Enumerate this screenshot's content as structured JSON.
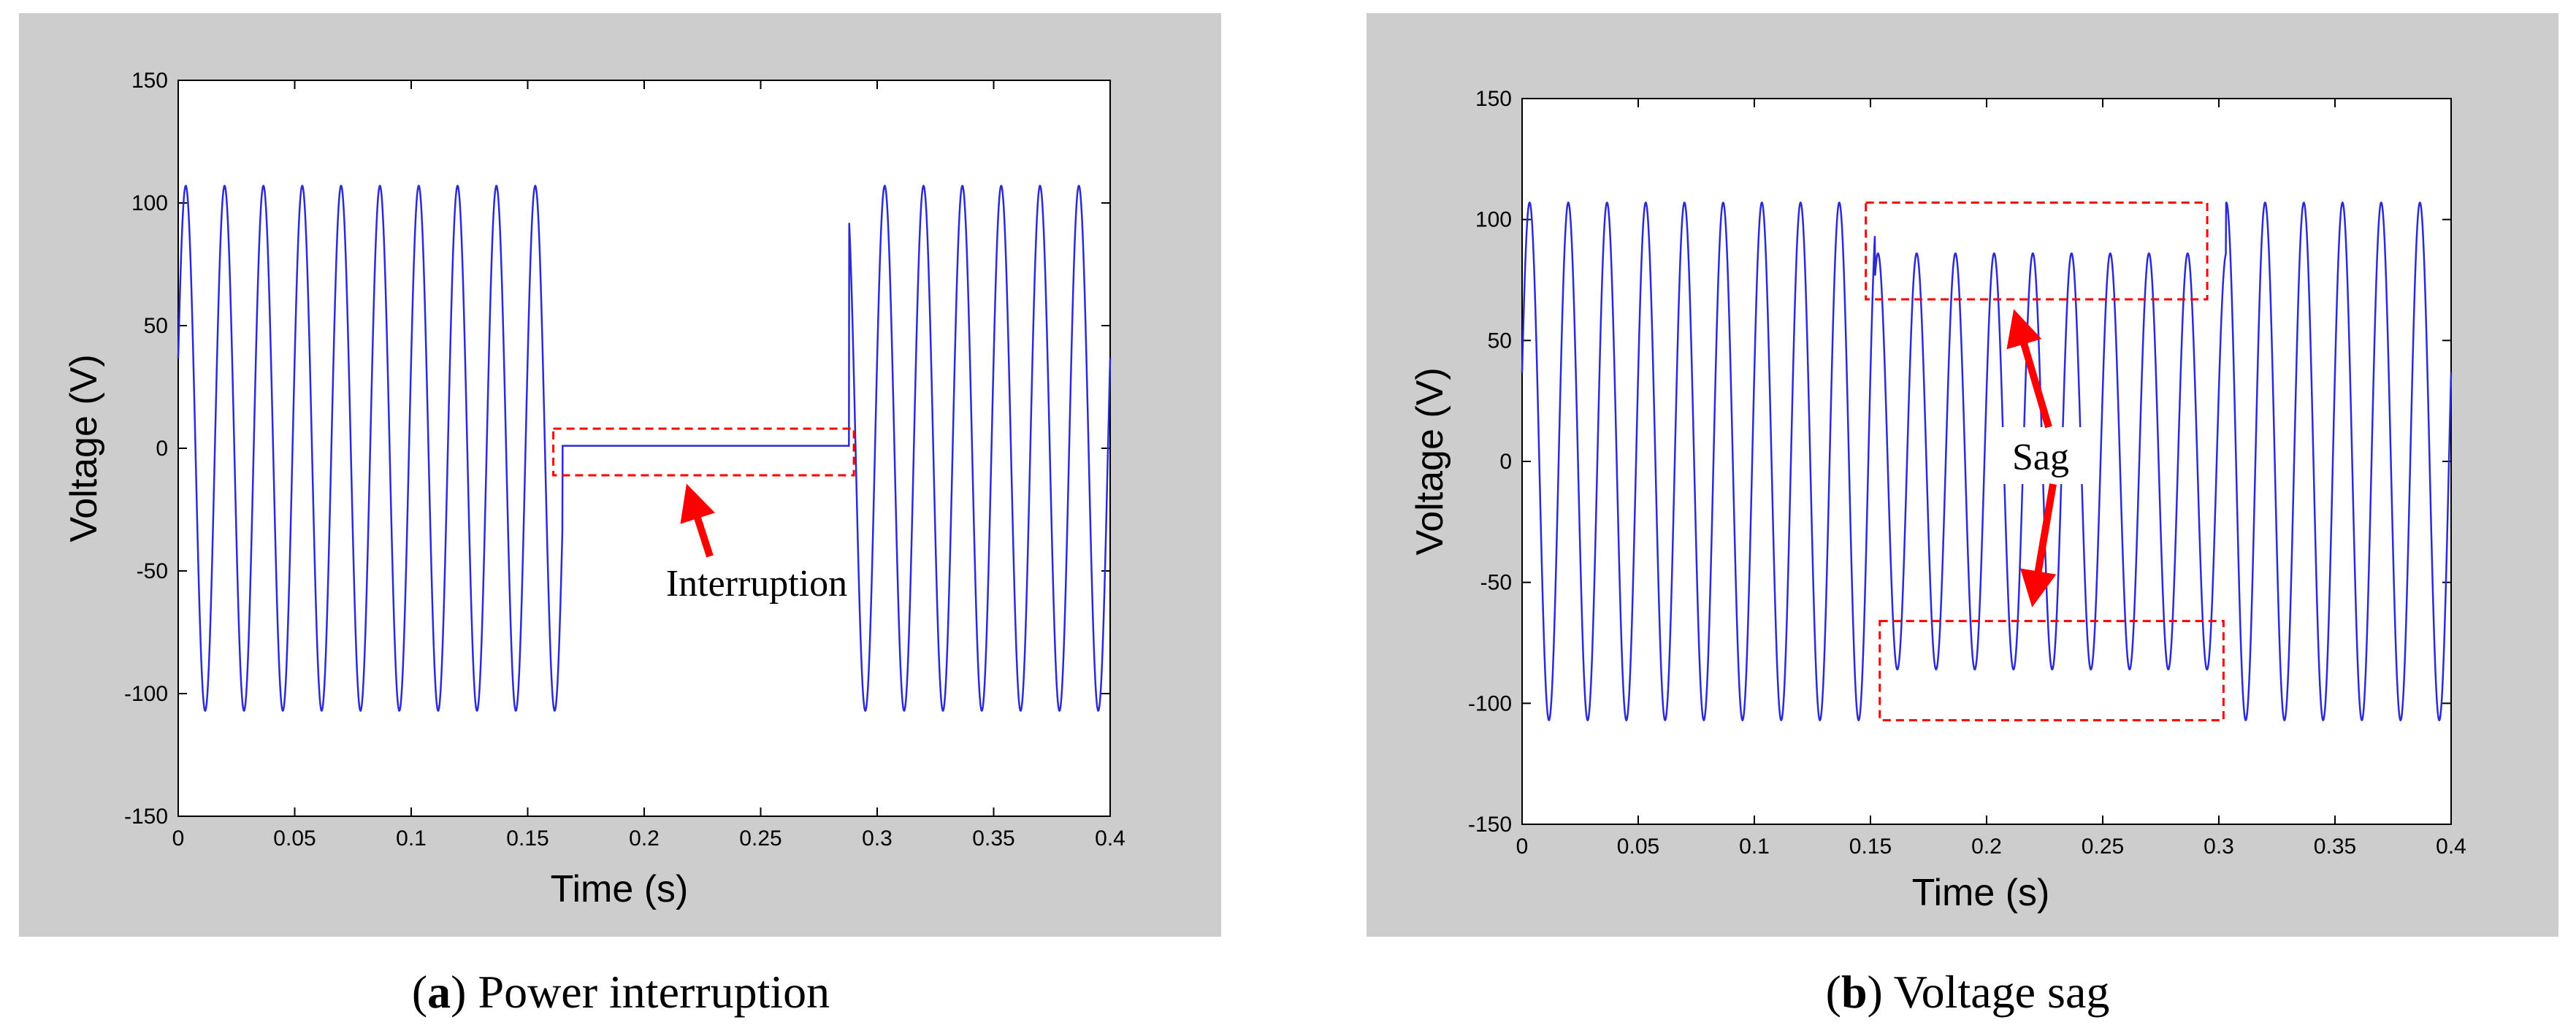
{
  "chart_data": [
    {
      "type": "line",
      "panel_letter": "a",
      "caption": "Power interruption",
      "xlabel": "Time (s)",
      "ylabel": "Voltage (V)",
      "xlim": [
        0,
        0.4
      ],
      "ylim": [
        -150,
        150
      ],
      "xticks": [
        0,
        0.05,
        0.1,
        0.15,
        0.2,
        0.25,
        0.3,
        0.35,
        0.4
      ],
      "xtick_labels": [
        "0",
        "0.05",
        "0.1",
        "0.15",
        "0.2",
        "0.25",
        "0.3",
        "0.35",
        "0.4"
      ],
      "yticks": [
        150,
        100,
        50,
        0,
        -50,
        -100,
        -150
      ],
      "ytick_labels": [
        "150",
        "100",
        "50",
        "0",
        "-50",
        "-100",
        "-150"
      ],
      "series": [
        {
          "name": "voltage",
          "color": "#2b2bd6",
          "waveform": "sine",
          "amplitude": 107,
          "frequency_hz": 60,
          "duration_s": 0.4,
          "event": {
            "kind": "interruption",
            "start": 0.165,
            "end": 0.288,
            "residual_voltage": 1
          }
        }
      ],
      "annotations": [
        {
          "text": "Interruption",
          "box_time": [
            0.161,
            0.29
          ],
          "box_voltage": [
            -11,
            8
          ],
          "arrow_color": "#ff0000"
        }
      ]
    },
    {
      "type": "line",
      "panel_letter": "b",
      "caption": "Voltage sag",
      "xlabel": "Time (s)",
      "ylabel": "Voltage (V)",
      "xlim": [
        0,
        0.4
      ],
      "ylim": [
        -150,
        150
      ],
      "xticks": [
        0,
        0.05,
        0.1,
        0.15,
        0.2,
        0.25,
        0.3,
        0.35,
        0.4
      ],
      "xtick_labels": [
        "0",
        "0.05",
        "0.1",
        "0.15",
        "0.2",
        "0.25",
        "0.3",
        "0.35",
        "0.4"
      ],
      "yticks": [
        150,
        100,
        50,
        0,
        -50,
        -100,
        -150
      ],
      "ytick_labels": [
        "150",
        "100",
        "50",
        "0",
        "-50",
        "-100",
        "-150"
      ],
      "series": [
        {
          "name": "voltage",
          "color": "#2b2bd6",
          "waveform": "sine",
          "amplitude": 107,
          "frequency_hz": 60,
          "duration_s": 0.4,
          "event": {
            "kind": "sag",
            "start": 0.152,
            "end": 0.303,
            "sag_amplitude": 86
          }
        }
      ],
      "annotations": [
        {
          "text": "Sag",
          "box_upper_time": [
            0.148,
            0.295
          ],
          "box_upper_voltage": [
            67,
            107
          ],
          "box_lower_time": [
            0.154,
            0.302
          ],
          "box_lower_voltage": [
            -107,
            -66
          ],
          "arrow_color": "#ff0000"
        }
      ]
    }
  ]
}
